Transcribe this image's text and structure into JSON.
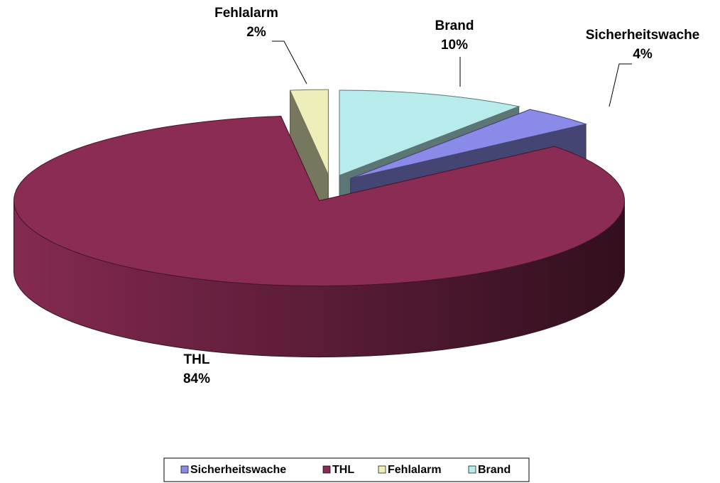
{
  "chart_data": {
    "type": "pie3d",
    "categories": [
      "Sicherheitswache",
      "THL",
      "Fehlalarm",
      "Brand"
    ],
    "values": [
      4,
      84,
      2,
      10
    ],
    "value_labels": [
      "4%",
      "84%",
      "2%",
      "10%"
    ],
    "colors": [
      "#8a8ae8",
      "#8b2c55",
      "#eeeebb",
      "#b8ecec"
    ],
    "legend": "bottom"
  }
}
